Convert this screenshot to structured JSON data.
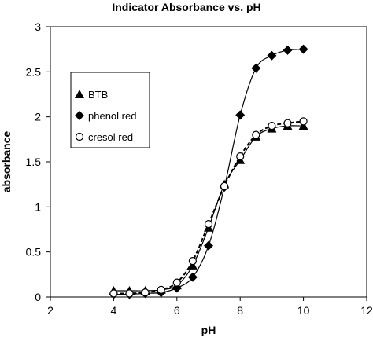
{
  "chart_data": {
    "type": "scatter",
    "title": "Indicator Absorbance vs. pH",
    "xlabel": "pH",
    "ylabel": "absorbance",
    "xlim": [
      2,
      12
    ],
    "ylim": [
      0,
      3
    ],
    "xticks": [
      "2",
      "4",
      "6",
      "8",
      "10",
      "12"
    ],
    "yticks": [
      "0",
      "0.5",
      "1",
      "1.5",
      "2",
      "2.5",
      "3"
    ],
    "grid": false,
    "legend_position": "upper-left",
    "series": [
      {
        "name": "BTB",
        "marker": "triangle",
        "line_style": "solid",
        "x": [
          4,
          4.5,
          5,
          5.5,
          6,
          6.5,
          7,
          7.5,
          8,
          8.5,
          9,
          9.5,
          10
        ],
        "y": [
          0.07,
          0.07,
          0.07,
          0.08,
          0.13,
          0.35,
          0.77,
          1.25,
          1.52,
          1.78,
          1.87,
          1.9,
          1.9
        ]
      },
      {
        "name": "phenol red",
        "marker": "diamond",
        "line_style": "solid",
        "x": [
          4,
          4.5,
          5,
          5.5,
          6,
          6.5,
          7,
          7.5,
          8,
          8.5,
          9,
          9.5,
          10
        ],
        "y": [
          0.03,
          0.03,
          0.04,
          0.05,
          0.1,
          0.22,
          0.57,
          1.22,
          2.02,
          2.54,
          2.68,
          2.74,
          2.75
        ]
      },
      {
        "name": "cresol red",
        "marker": "circle-open",
        "line_style": "dashed",
        "x": [
          4,
          4.5,
          5,
          5.5,
          6,
          6.5,
          7,
          7.5,
          8,
          8.5,
          9,
          9.5,
          10
        ],
        "y": [
          0.04,
          0.04,
          0.05,
          0.08,
          0.16,
          0.4,
          0.81,
          1.23,
          1.56,
          1.8,
          1.9,
          1.93,
          1.95
        ]
      }
    ]
  }
}
